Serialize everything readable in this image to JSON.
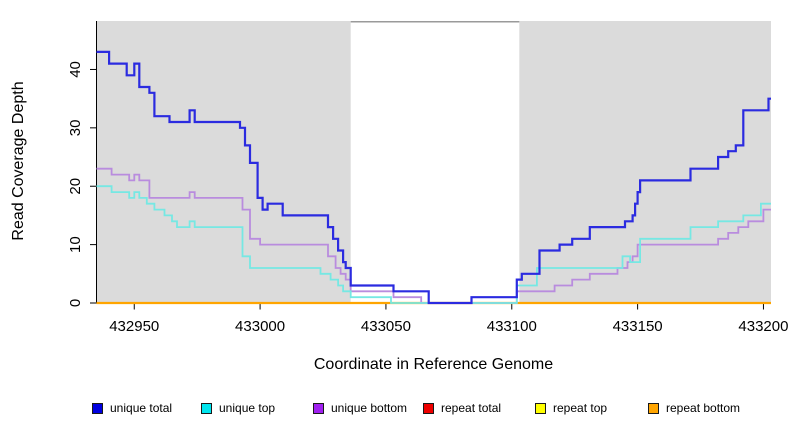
{
  "chart_data": {
    "type": "line",
    "subtype": "step",
    "title": "",
    "xlabel": "Coordinate in Reference Genome",
    "ylabel": "Read Coverage Depth",
    "xlim": [
      432935,
      433203
    ],
    "ylim": [
      0,
      48.3
    ],
    "x_ticks": [
      432950,
      433000,
      433050,
      433100,
      433150,
      433200
    ],
    "y_ticks": [
      0,
      10,
      20,
      30,
      40
    ],
    "grid": false,
    "legend_position": "bottom",
    "plot_bg_color": "#DBDBDB",
    "axis_color": "#000000",
    "highlight_region": {
      "x0": 433036,
      "x1": 433103,
      "color": "#FFFFFF",
      "top_border_color": "#9A9A9A"
    },
    "draw_order": [
      "repeat_total",
      "repeat_top",
      "repeat_bottom",
      "unique_bottom",
      "unique_top",
      "unique_total"
    ],
    "series": [
      {
        "id": "unique_total",
        "label": "unique total",
        "line_color": "#2B2BE0",
        "legend_color": "#0000E0",
        "line_width": 2.2,
        "points": [
          [
            432935,
            43
          ],
          [
            432940,
            41
          ],
          [
            432947,
            39
          ],
          [
            432950,
            41
          ],
          [
            432952,
            37
          ],
          [
            432956,
            36
          ],
          [
            432958,
            32
          ],
          [
            432964,
            31
          ],
          [
            432972,
            33
          ],
          [
            432974,
            31
          ],
          [
            432992,
            30
          ],
          [
            432994,
            27
          ],
          [
            432996,
            24
          ],
          [
            432999,
            18
          ],
          [
            433001,
            16
          ],
          [
            433003,
            17
          ],
          [
            433009,
            15
          ],
          [
            433027,
            13
          ],
          [
            433029,
            11
          ],
          [
            433031,
            9
          ],
          [
            433033,
            7
          ],
          [
            433034,
            6
          ],
          [
            433036,
            3
          ],
          [
            433053,
            2
          ],
          [
            433067,
            0
          ],
          [
            433084,
            1
          ],
          [
            433102,
            4
          ],
          [
            433104,
            5
          ],
          [
            433111,
            9
          ],
          [
            433119,
            10
          ],
          [
            433124,
            11
          ],
          [
            433131,
            13
          ],
          [
            433145,
            14
          ],
          [
            433148,
            15
          ],
          [
            433149,
            17
          ],
          [
            433150,
            19
          ],
          [
            433151,
            21
          ],
          [
            433171,
            23
          ],
          [
            433182,
            25
          ],
          [
            433186,
            26
          ],
          [
            433189,
            27
          ],
          [
            433192,
            33
          ],
          [
            433202,
            35
          ]
        ]
      },
      {
        "id": "unique_top",
        "label": "unique top",
        "line_color": "#76E8E3",
        "legend_color": "#00E5EE",
        "line_width": 1.8,
        "points": [
          [
            432935,
            20
          ],
          [
            432941,
            19
          ],
          [
            432948,
            18
          ],
          [
            432950,
            19
          ],
          [
            432952,
            18
          ],
          [
            432955,
            17
          ],
          [
            432958,
            16
          ],
          [
            432962,
            15
          ],
          [
            432965,
            14
          ],
          [
            432967,
            13
          ],
          [
            432972,
            14
          ],
          [
            432974,
            13
          ],
          [
            432993,
            8
          ],
          [
            432996,
            6
          ],
          [
            433024,
            5
          ],
          [
            433028,
            4
          ],
          [
            433031,
            3
          ],
          [
            433033,
            2
          ],
          [
            433036,
            1
          ],
          [
            433052,
            0
          ],
          [
            433102,
            3
          ],
          [
            433110,
            6
          ],
          [
            433144,
            8
          ],
          [
            433147,
            7
          ],
          [
            433151,
            11
          ],
          [
            433171,
            13
          ],
          [
            433182,
            14
          ],
          [
            433192,
            15
          ],
          [
            433199,
            17
          ]
        ]
      },
      {
        "id": "unique_bottom",
        "label": "unique bottom",
        "line_color": "#B98CDE",
        "legend_color": "#A020F0",
        "line_width": 1.8,
        "points": [
          [
            432935,
            23
          ],
          [
            432941,
            22
          ],
          [
            432948,
            21
          ],
          [
            432950,
            22
          ],
          [
            432952,
            21
          ],
          [
            432956,
            18
          ],
          [
            432972,
            19
          ],
          [
            432974,
            18
          ],
          [
            432993,
            16
          ],
          [
            432996,
            11
          ],
          [
            433000,
            10
          ],
          [
            433027,
            8
          ],
          [
            433030,
            6
          ],
          [
            433032,
            5
          ],
          [
            433034,
            4
          ],
          [
            433036,
            2
          ],
          [
            433053,
            1
          ],
          [
            433064,
            0
          ],
          [
            433102,
            2
          ],
          [
            433117,
            3
          ],
          [
            433124,
            4
          ],
          [
            433131,
            5
          ],
          [
            433142,
            6
          ],
          [
            433146,
            7
          ],
          [
            433148,
            8
          ],
          [
            433150,
            10
          ],
          [
            433182,
            11
          ],
          [
            433186,
            12
          ],
          [
            433190,
            13
          ],
          [
            433194,
            14
          ],
          [
            433200,
            16
          ]
        ]
      },
      {
        "id": "repeat_total",
        "label": "repeat total",
        "line_color": "#EE0000",
        "legend_color": "#EE0000",
        "line_width": 2,
        "points": [
          [
            432935,
            0
          ]
        ]
      },
      {
        "id": "repeat_top",
        "label": "repeat top",
        "line_color": "#FFFF00",
        "legend_color": "#FFFF00",
        "line_width": 2,
        "points": [
          [
            432935,
            0
          ]
        ]
      },
      {
        "id": "repeat_bottom",
        "label": "repeat bottom",
        "line_color": "#FFA500",
        "legend_color": "#FFA500",
        "line_width": 2.2,
        "points": [
          [
            432935,
            0
          ]
        ]
      }
    ]
  }
}
